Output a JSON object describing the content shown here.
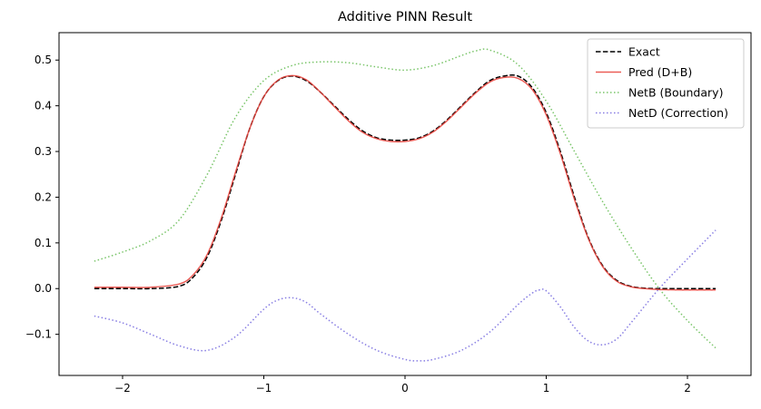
{
  "chart_data": {
    "type": "line",
    "title": "Additive PINN Result",
    "xlabel": "",
    "ylabel": "",
    "xlim": [
      -2.45,
      2.45
    ],
    "ylim": [
      -0.19,
      0.56
    ],
    "xticks": [
      -2,
      -1,
      0,
      1,
      2
    ],
    "xtick_labels": [
      "−2",
      "−1",
      "0",
      "1",
      "2"
    ],
    "yticks": [
      -0.1,
      0.0,
      0.1,
      0.2,
      0.3,
      0.4,
      0.5
    ],
    "ytick_labels": [
      "−0.1",
      "0.0",
      "0.1",
      "0.2",
      "0.3",
      "0.4",
      "0.5"
    ],
    "grid": false,
    "legend_position": "top-right",
    "series": [
      {
        "name": "Exact",
        "color": "#000000",
        "style": "dashed",
        "x": [
          -2.2,
          -2.0,
          -1.8,
          -1.6,
          -1.5,
          -1.4,
          -1.3,
          -1.2,
          -1.1,
          -1.0,
          -0.9,
          -0.8,
          -0.7,
          -0.6,
          -0.5,
          -0.4,
          -0.3,
          -0.2,
          -0.1,
          0.0,
          0.1,
          0.2,
          0.3,
          0.4,
          0.5,
          0.6,
          0.7,
          0.8,
          0.9,
          1.0,
          1.1,
          1.2,
          1.3,
          1.4,
          1.5,
          1.6,
          1.7,
          1.8,
          2.0,
          2.2
        ],
        "y": [
          0.0,
          0.0,
          0.0,
          0.005,
          0.025,
          0.07,
          0.15,
          0.25,
          0.35,
          0.42,
          0.455,
          0.465,
          0.455,
          0.43,
          0.4,
          0.37,
          0.345,
          0.33,
          0.325,
          0.325,
          0.33,
          0.345,
          0.37,
          0.4,
          0.43,
          0.455,
          0.465,
          0.465,
          0.44,
          0.385,
          0.3,
          0.2,
          0.11,
          0.05,
          0.018,
          0.005,
          0.001,
          0.0,
          0.0,
          0.0
        ]
      },
      {
        "name": "Pred (D+B)",
        "color": "#e8413a",
        "style": "solid",
        "x": [
          -2.2,
          -2.0,
          -1.8,
          -1.6,
          -1.5,
          -1.4,
          -1.3,
          -1.2,
          -1.1,
          -1.0,
          -0.9,
          -0.8,
          -0.7,
          -0.6,
          -0.5,
          -0.4,
          -0.3,
          -0.2,
          -0.1,
          0.0,
          0.1,
          0.2,
          0.3,
          0.4,
          0.5,
          0.6,
          0.7,
          0.8,
          0.9,
          1.0,
          1.1,
          1.2,
          1.3,
          1.4,
          1.5,
          1.6,
          1.7,
          1.8,
          2.0,
          2.2
        ],
        "y": [
          0.003,
          0.003,
          0.003,
          0.01,
          0.03,
          0.075,
          0.155,
          0.255,
          0.35,
          0.42,
          0.456,
          0.466,
          0.457,
          0.43,
          0.398,
          0.367,
          0.342,
          0.328,
          0.322,
          0.322,
          0.328,
          0.343,
          0.368,
          0.398,
          0.428,
          0.452,
          0.462,
          0.46,
          0.436,
          0.38,
          0.295,
          0.195,
          0.108,
          0.048,
          0.016,
          0.004,
          0.0,
          -0.002,
          -0.003,
          -0.003
        ]
      },
      {
        "name": "NetB (Boundary)",
        "color": "#6cbf5a",
        "style": "dotted",
        "x": [
          -2.2,
          -2.0,
          -1.8,
          -1.6,
          -1.4,
          -1.2,
          -1.0,
          -0.8,
          -0.6,
          -0.4,
          -0.2,
          0.0,
          0.2,
          0.4,
          0.5,
          0.6,
          0.8,
          1.0,
          1.2,
          1.4,
          1.6,
          1.8,
          2.0,
          2.2
        ],
        "y": [
          0.06,
          0.08,
          0.105,
          0.15,
          0.25,
          0.375,
          0.455,
          0.488,
          0.496,
          0.494,
          0.485,
          0.478,
          0.488,
          0.51,
          0.52,
          0.522,
          0.49,
          0.41,
          0.3,
          0.19,
          0.09,
          0.0,
          -0.07,
          -0.13
        ]
      },
      {
        "name": "NetD (Correction)",
        "color": "#7b70e0",
        "style": "dotted",
        "x": [
          -2.2,
          -2.0,
          -1.8,
          -1.6,
          -1.4,
          -1.2,
          -1.0,
          -0.9,
          -0.8,
          -0.7,
          -0.6,
          -0.4,
          -0.2,
          0.0,
          0.1,
          0.2,
          0.4,
          0.6,
          0.8,
          0.9,
          0.95,
          1.0,
          1.1,
          1.2,
          1.3,
          1.4,
          1.5,
          1.6,
          1.8,
          2.0,
          2.2
        ],
        "y": [
          -0.06,
          -0.075,
          -0.1,
          -0.125,
          -0.135,
          -0.105,
          -0.045,
          -0.025,
          -0.02,
          -0.03,
          -0.055,
          -0.1,
          -0.135,
          -0.155,
          -0.158,
          -0.155,
          -0.135,
          -0.095,
          -0.035,
          -0.01,
          -0.003,
          -0.005,
          -0.04,
          -0.085,
          -0.115,
          -0.123,
          -0.11,
          -0.075,
          0.0,
          0.065,
          0.128
        ]
      }
    ]
  }
}
